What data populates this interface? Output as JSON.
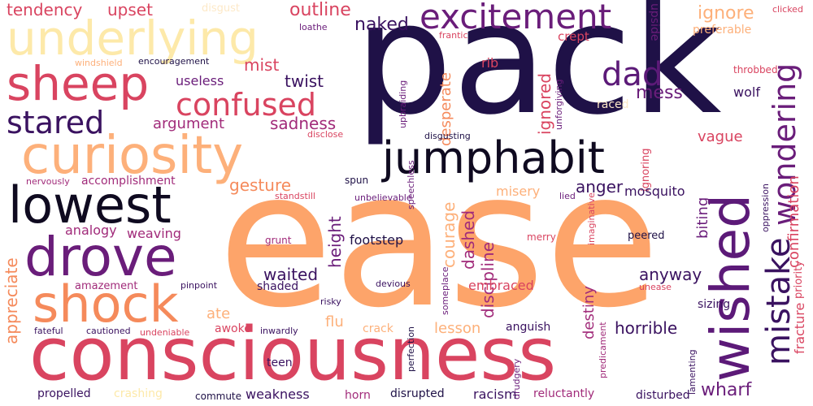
{
  "palette": {
    "dark_navy": "#1f1147",
    "purple": "#6a1d7a",
    "magenta": "#a12b7a",
    "rose": "#d94460",
    "orange": "#f58a5b",
    "peach": "#fdb07a",
    "cream": "#fde9a9"
  },
  "words": [
    "pack",
    "ease",
    "consciousness",
    "curiosity",
    "jumphabit",
    "lowest",
    "drove",
    "shock",
    "sheep",
    "underlying",
    "excitement",
    "wished",
    "mistake",
    "wondering",
    "confused",
    "stared",
    "dad",
    "tendency",
    "upset",
    "disgust",
    "outline",
    "ignore",
    "clicked",
    "naked",
    "crept",
    "preferable",
    "frantic",
    "loathe",
    "windshield",
    "encouragement",
    "mist",
    "rib",
    "upside",
    "useless",
    "twist",
    "mess",
    "unforgiving",
    "upbraiding",
    "throbbed",
    "desperate",
    "wolf",
    "argument",
    "sadness",
    "ignored",
    "raced",
    "disgusting",
    "vague",
    "disclose",
    "speechless",
    "ignoring",
    "confirmation",
    "accomplishment",
    "gesture",
    "anger",
    "nervously",
    "spun",
    "standstill",
    "unbelievable",
    "height",
    "courage",
    "misery",
    "lied",
    "mosquito",
    "imaginative",
    "oppression",
    "biting",
    "fracture",
    "priority",
    "appreciate",
    "analogy",
    "weaving",
    "grunt",
    "footstep",
    "discipline",
    "dashed",
    "merry",
    "peered",
    "waited",
    "anyway",
    "amazement",
    "shaded",
    "pinpoint",
    "devious",
    "unease",
    "embraced",
    "destiny",
    "someplace",
    "risky",
    "sizing",
    "ate",
    "awoke",
    "flu",
    "lesson",
    "anguish",
    "horrible",
    "fateful",
    "cautioned",
    "undeniable",
    "inwardly",
    "crack",
    "perfection",
    "predicament",
    "teen",
    "drudgery",
    "lamenting",
    "propelled",
    "crashing",
    "commute",
    "weakness",
    "horn",
    "disrupted",
    "racism",
    "reluctantly",
    "disturbed",
    "wharf"
  ]
}
